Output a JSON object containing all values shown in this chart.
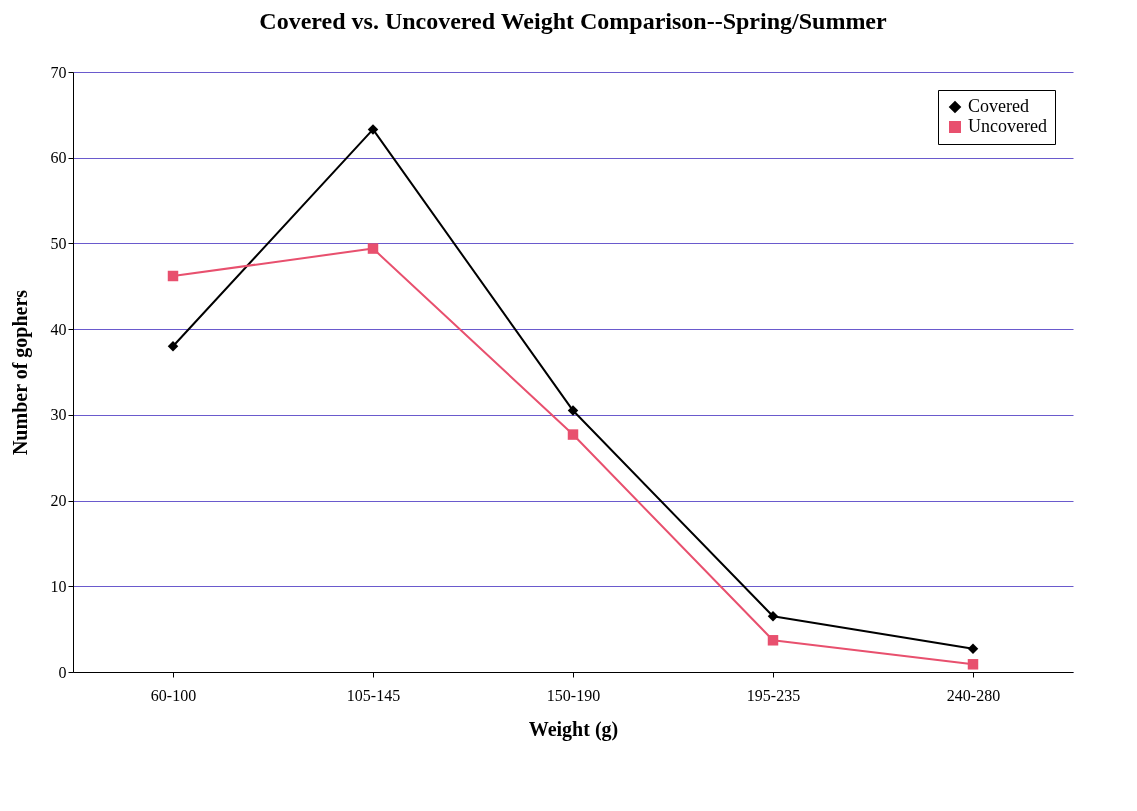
{
  "chart_data": {
    "type": "line",
    "title": "Covered vs. Uncovered Weight Comparison--Spring/Summer",
    "xlabel": "Weight (g)",
    "ylabel": "Number of gophers",
    "categories": [
      "60-100",
      "105-145",
      "150-190",
      "195-235",
      "240-280"
    ],
    "series": [
      {
        "name": "Covered",
        "color": "#000000",
        "marker": "diamond",
        "values": [
          38,
          63.3,
          30.5,
          6.5,
          2.7
        ]
      },
      {
        "name": "Uncovered",
        "color": "#e8506e",
        "marker": "square",
        "values": [
          46.2,
          49.4,
          27.7,
          3.7,
          0.9
        ]
      }
    ],
    "ylim": [
      0,
      70
    ],
    "yticks": [
      0,
      10,
      20,
      30,
      40,
      50,
      60,
      70
    ],
    "grid": "y",
    "legend": "top right",
    "line_style": "solid"
  }
}
